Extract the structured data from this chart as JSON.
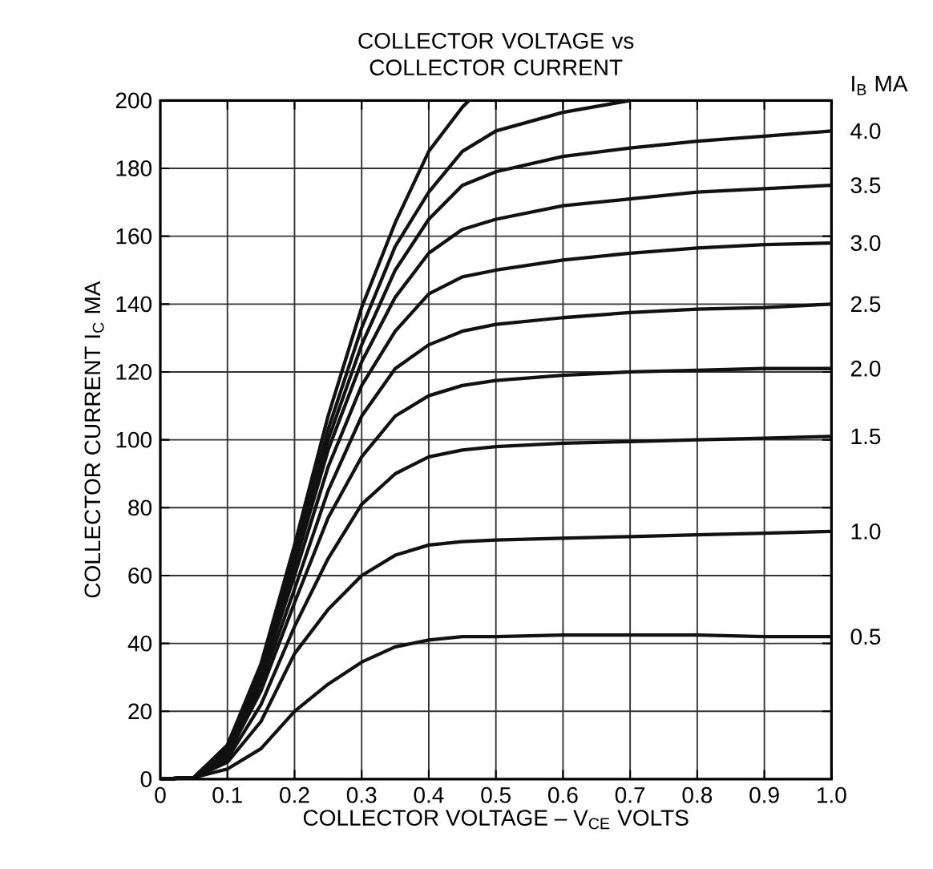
{
  "chart_data": {
    "type": "line",
    "title": "COLLECTOR VOLTAGE vs COLLECTOR CURRENT",
    "xlabel": "COLLECTOR VOLTAGE – V$_{CE}$ VOLTS",
    "ylabel": "COLLECTOR CURRENT I$_{C}$ MA",
    "legend_title": "I$_{B}$ MA",
    "xlim": [
      0,
      1.0
    ],
    "ylim": [
      0,
      200
    ],
    "xticks": [
      0,
      0.1,
      0.2,
      0.3,
      0.4,
      0.5,
      0.6,
      0.7,
      0.8,
      0.9,
      {
        "value": 1.0,
        "label": "1.0"
      }
    ],
    "yticks": [
      0,
      20,
      40,
      60,
      80,
      100,
      120,
      140,
      160,
      180,
      200
    ],
    "grid": true,
    "legend": false,
    "series": [
      {
        "name": "0.5",
        "color": "#111111",
        "x": [
          0,
          0.05,
          0.1,
          0.15,
          0.2,
          0.25,
          0.3,
          0.35,
          0.4,
          0.45,
          0.5,
          0.6,
          0.7,
          0.8,
          0.9,
          1.0
        ],
        "values": [
          0,
          0.5,
          3,
          9,
          20,
          28,
          34.5,
          39,
          41,
          42,
          42,
          42.5,
          42.5,
          42.5,
          42,
          42
        ]
      },
      {
        "name": "1.0",
        "color": "#111111",
        "x": [
          0,
          0.05,
          0.1,
          0.15,
          0.2,
          0.25,
          0.3,
          0.35,
          0.4,
          0.45,
          0.5,
          0.6,
          0.7,
          0.8,
          0.9,
          1.0
        ],
        "values": [
          0,
          0.5,
          5,
          17,
          37,
          50,
          60,
          66,
          69,
          70,
          70.5,
          71,
          71.5,
          72,
          72.5,
          73
        ]
      },
      {
        "name": "1.5",
        "color": "#111111",
        "x": [
          0,
          0.05,
          0.1,
          0.15,
          0.2,
          0.25,
          0.3,
          0.35,
          0.4,
          0.45,
          0.5,
          0.6,
          0.7,
          0.8,
          0.9,
          1.0
        ],
        "values": [
          0,
          0.5,
          6,
          22,
          45,
          65,
          81,
          90,
          95,
          97,
          98,
          99,
          99.5,
          100,
          100.5,
          101
        ]
      },
      {
        "name": "2.0",
        "color": "#111111",
        "x": [
          0,
          0.05,
          0.1,
          0.15,
          0.2,
          0.25,
          0.3,
          0.35,
          0.4,
          0.45,
          0.5,
          0.6,
          0.7,
          0.8,
          0.9,
          1.0
        ],
        "values": [
          0,
          0.5,
          7,
          26,
          52,
          77,
          95,
          107,
          113,
          116,
          117.5,
          119,
          120,
          120.5,
          121,
          121
        ]
      },
      {
        "name": "2.5",
        "color": "#111111",
        "x": [
          0,
          0.05,
          0.1,
          0.15,
          0.2,
          0.25,
          0.3,
          0.35,
          0.4,
          0.45,
          0.5,
          0.6,
          0.7,
          0.8,
          0.9,
          1.0
        ],
        "values": [
          0,
          0.5,
          8,
          28,
          56,
          85,
          107,
          121,
          128,
          132,
          134,
          136,
          137.5,
          138.5,
          139,
          140
        ]
      },
      {
        "name": "3.0",
        "color": "#111111",
        "x": [
          0,
          0.05,
          0.1,
          0.15,
          0.2,
          0.25,
          0.3,
          0.35,
          0.4,
          0.45,
          0.5,
          0.6,
          0.7,
          0.8,
          0.9,
          1.0
        ],
        "values": [
          0,
          0.5,
          8,
          30,
          60,
          92,
          116,
          132,
          143,
          148,
          150,
          153,
          155,
          156.5,
          157.5,
          158
        ]
      },
      {
        "name": "3.5",
        "color": "#111111",
        "x": [
          0,
          0.05,
          0.1,
          0.15,
          0.2,
          0.25,
          0.3,
          0.35,
          0.4,
          0.45,
          0.5,
          0.6,
          0.7,
          0.8,
          0.9,
          1.0
        ],
        "values": [
          0,
          0.5,
          9,
          31,
          63,
          97,
          123,
          142,
          155,
          162,
          165,
          169,
          171,
          173,
          174,
          175
        ]
      },
      {
        "name": "4.0",
        "color": "#111111",
        "x": [
          0,
          0.05,
          0.1,
          0.15,
          0.2,
          0.25,
          0.3,
          0.35,
          0.4,
          0.45,
          0.5,
          0.6,
          0.7,
          0.8,
          0.9,
          1.0
        ],
        "values": [
          0,
          0.5,
          9,
          32,
          65,
          100,
          128,
          150,
          165,
          175,
          179,
          183.5,
          186,
          188,
          189.5,
          191
        ]
      },
      {
        "color": "#111111",
        "x": [
          0,
          0.05,
          0.1,
          0.15,
          0.2,
          0.25,
          0.3,
          0.35,
          0.4,
          0.45,
          0.5,
          0.6,
          0.7
        ],
        "values": [
          0,
          0.5,
          10,
          33,
          67,
          103,
          133,
          157,
          173,
          185,
          191,
          196.5,
          200
        ]
      },
      {
        "color": "#111111",
        "x": [
          0,
          0.05,
          0.1,
          0.15,
          0.2,
          0.25,
          0.3,
          0.35,
          0.4,
          0.45,
          0.46
        ],
        "values": [
          0,
          0.5,
          10,
          34,
          69,
          107,
          139,
          164,
          185,
          198,
          200
        ]
      }
    ]
  }
}
